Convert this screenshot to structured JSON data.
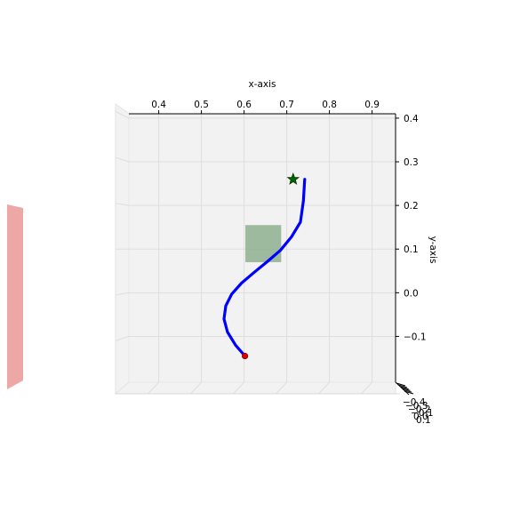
{
  "chart_data": {
    "type": "line",
    "title": "",
    "xlabel": "x-axis",
    "ylabel": "y-axis",
    "xlim": [
      0.33,
      0.955
    ],
    "ylim": [
      -0.205,
      0.41
    ],
    "x_ticks": [
      0.4,
      0.5,
      0.6,
      0.7,
      0.8,
      0.9
    ],
    "x_tick_labels": [
      "0.4",
      "0.5",
      "0.6",
      "0.7",
      "0.8",
      "0.9"
    ],
    "y_ticks": [
      -0.1,
      0.0,
      0.1,
      0.2,
      0.3,
      0.4
    ],
    "y_tick_labels": [
      "−0.1",
      "0.0",
      "0.1",
      "0.2",
      "0.3",
      "0.4"
    ],
    "z_tick_labels": [
      "−0.4",
      "−0.3",
      "−0.2",
      "−0.1",
      "0.0",
      "0.1"
    ],
    "grid": true,
    "series": [
      {
        "color": "#0000ff",
        "x": [
          0.602,
          0.58,
          0.561,
          0.553,
          0.557,
          0.571,
          0.594,
          0.623,
          0.654,
          0.685,
          0.711,
          0.732,
          0.739,
          0.742
        ],
        "y": [
          -0.145,
          -0.12,
          -0.09,
          -0.06,
          -0.03,
          -0.003,
          0.022,
          0.046,
          0.071,
          0.097,
          0.128,
          0.162,
          0.21,
          0.26
        ]
      }
    ],
    "start_point": {
      "x": 0.602,
      "y": -0.145,
      "color": "#dd0000"
    },
    "goal_point": {
      "x": 0.715,
      "y": 0.26,
      "color": "#006400"
    },
    "obstacle": {
      "x": [
        0.603,
        0.687
      ],
      "y": [
        0.07,
        0.155
      ],
      "color": "#8fb08f"
    },
    "pane_color": "#f2f2f2",
    "grid_color": "#dedede",
    "side_patch_color": "#eda7a5"
  }
}
